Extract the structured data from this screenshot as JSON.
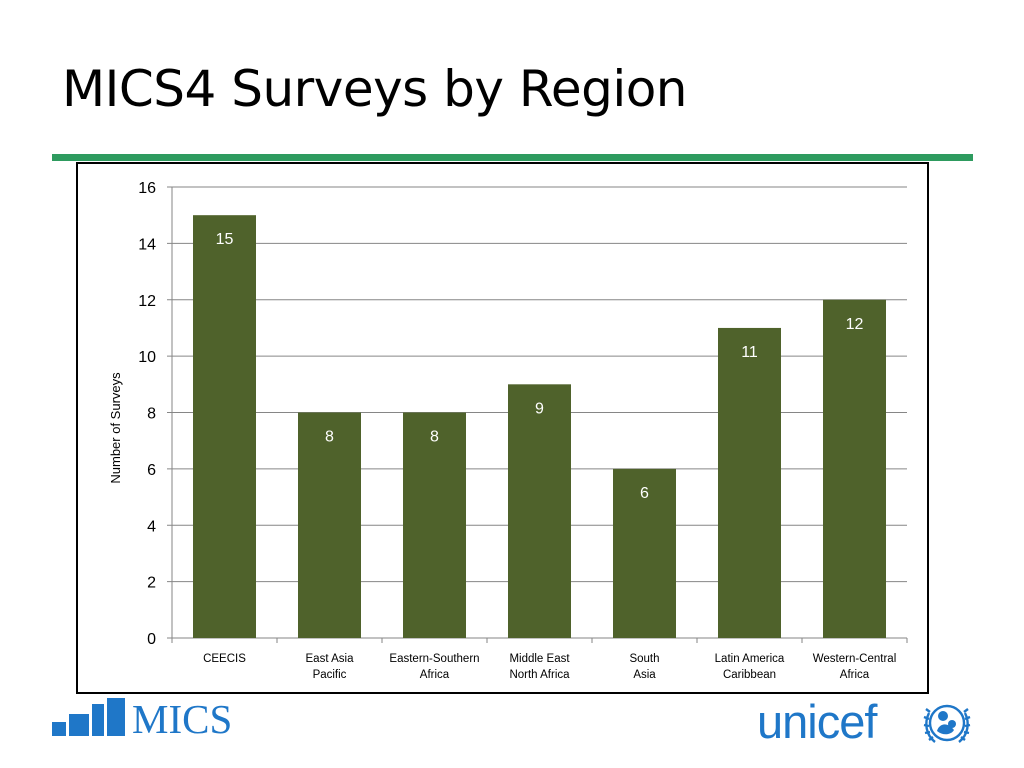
{
  "slide": {
    "title": "MICS4 Surveys by Region"
  },
  "colors": {
    "title_rule": "#2e9b5f",
    "bar": "#4f622b",
    "grid": "#868686",
    "logo_blue": "#1f77c8"
  },
  "logos": {
    "mics_text": "MICS",
    "unicef_text": "unicef",
    "unicef_emblem": "unicef-emblem-icon"
  },
  "chart_data": {
    "type": "bar",
    "title": "",
    "xlabel": "",
    "ylabel": "Number of Surveys",
    "ylim": [
      0,
      16
    ],
    "yticks": [
      0,
      2,
      4,
      6,
      8,
      10,
      12,
      14,
      16
    ],
    "grid": true,
    "legend": "none",
    "categories": [
      [
        "CEECIS"
      ],
      [
        "East Asia",
        "Pacific"
      ],
      [
        "Eastern-Southern",
        "Africa"
      ],
      [
        "Middle East",
        "North Africa"
      ],
      [
        "South",
        "Asia"
      ],
      [
        "Latin America",
        "Caribbean"
      ],
      [
        "Western-Central",
        "Africa"
      ]
    ],
    "values": [
      15,
      8,
      8,
      9,
      6,
      11,
      12
    ],
    "data_labels": [
      "15",
      "8",
      "8",
      "9",
      "6",
      "11",
      "12"
    ]
  }
}
